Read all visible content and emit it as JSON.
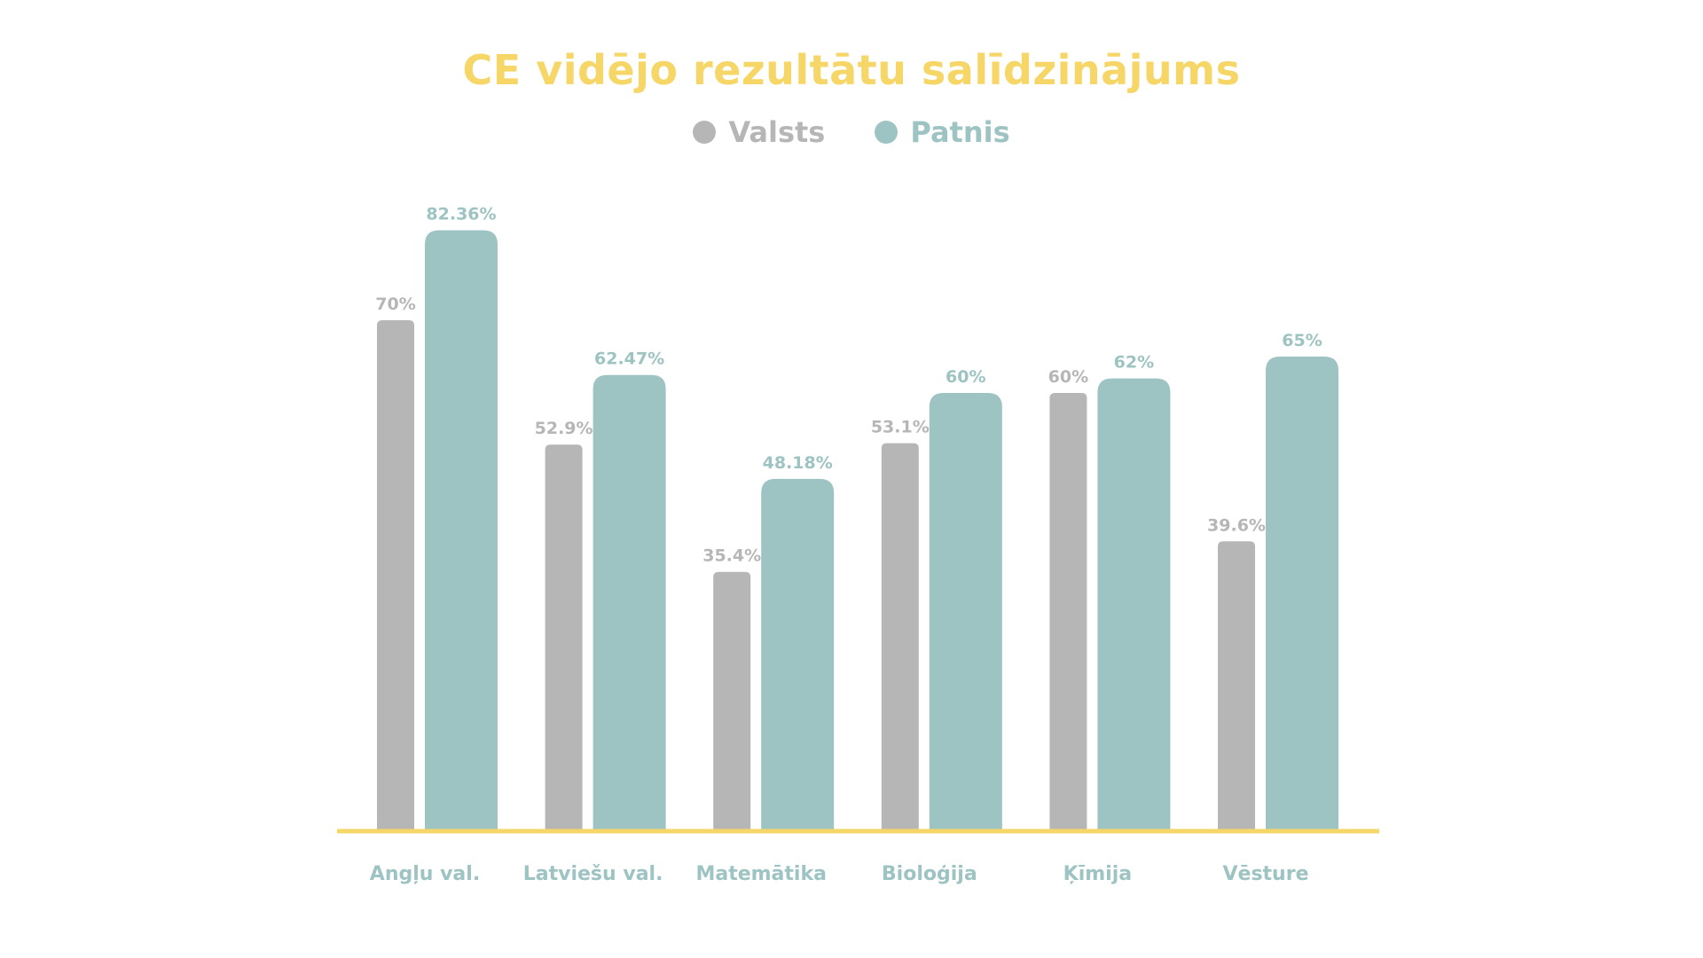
{
  "chart_data": {
    "type": "bar",
    "title": "CE vidējo rezultātu salīdzinājums",
    "categories": [
      "Angļu val.",
      "Latviešu val.",
      "Matemātika",
      "Bioloģija",
      "Ķīmija",
      "Vēsture"
    ],
    "series": [
      {
        "name": "Valsts",
        "values": [
          70,
          52.9,
          35.4,
          53.1,
          60,
          39.6
        ],
        "labels": [
          "70%",
          "52.9%",
          "35.4%",
          "53.1%",
          "60%",
          "39.6%"
        ],
        "color": "#b6b6b6"
      },
      {
        "name": "Patnis",
        "values": [
          82.36,
          62.47,
          48.18,
          60,
          62,
          65
        ],
        "labels": [
          "82.36%",
          "62.47%",
          "48.18%",
          "60%",
          "62%",
          "65%"
        ],
        "color": "#9dc3c2"
      }
    ],
    "legend_position": "top-center",
    "grid": false,
    "axis_color": "#f5d667",
    "category_label_color": "#9dc3c2",
    "xlabel": "",
    "ylabel": "",
    "ylim": [
      0,
      100
    ]
  }
}
